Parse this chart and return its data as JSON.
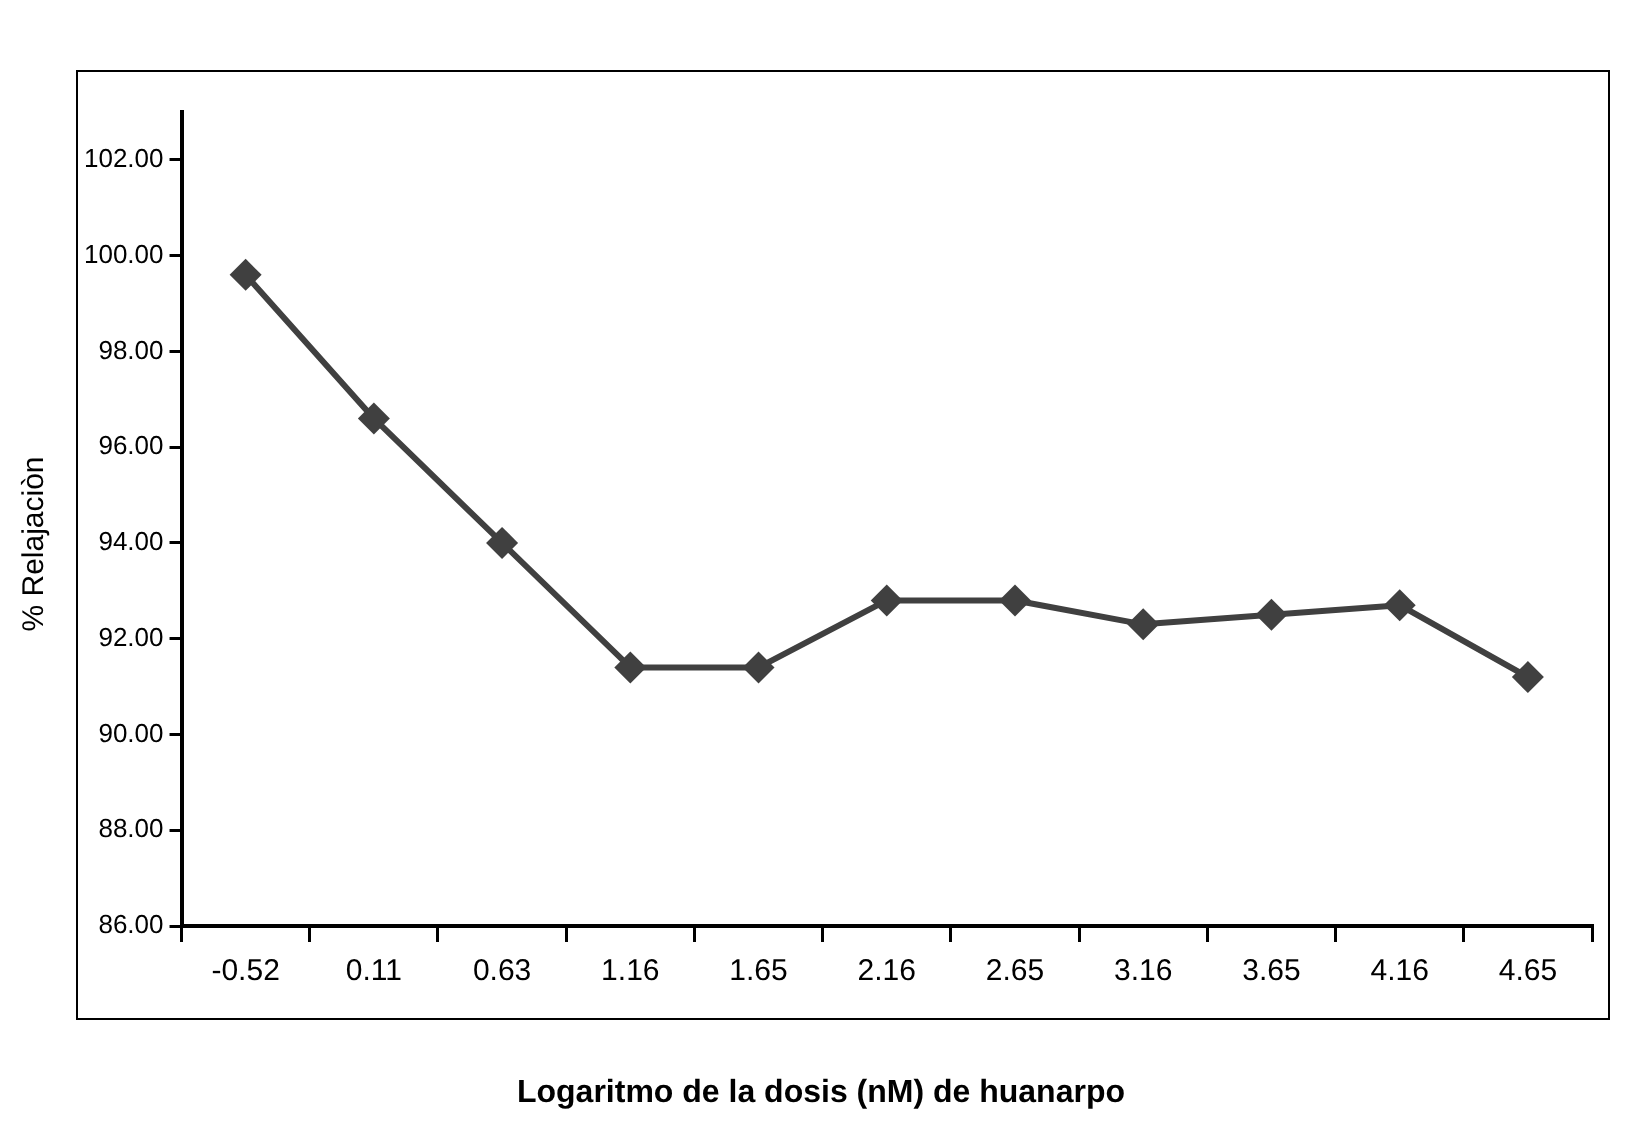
{
  "chart_data": {
    "type": "line",
    "xlabel": "Logaritmo de la dosis (nM) de huanarpo",
    "ylabel": "% Relajaciòn",
    "categories": [
      "-0.52",
      "0.11",
      "0.63",
      "1.16",
      "1.65",
      "2.16",
      "2.65",
      "3.16",
      "3.65",
      "4.16",
      "4.65"
    ],
    "series": [
      {
        "color": "#404040",
        "values": [
          99.6,
          96.6,
          94.0,
          91.4,
          91.4,
          92.8,
          92.8,
          92.3,
          92.5,
          92.7,
          91.2
        ]
      }
    ],
    "ylim": [
      86,
      103
    ],
    "yticks": [
      {
        "value": 86,
        "label": "86.00"
      },
      {
        "value": 88,
        "label": "88.00"
      },
      {
        "value": 90,
        "label": "90.00"
      },
      {
        "value": 92,
        "label": "92.00"
      },
      {
        "value": 94,
        "label": "94.00"
      },
      {
        "value": 96,
        "label": "96.00"
      },
      {
        "value": 98,
        "label": "98.00"
      },
      {
        "value": 100,
        "label": "100.00"
      },
      {
        "value": 102,
        "label": "102.00"
      }
    ],
    "grid": false,
    "legend": false,
    "marker": "diamond",
    "line_style": "solid"
  }
}
